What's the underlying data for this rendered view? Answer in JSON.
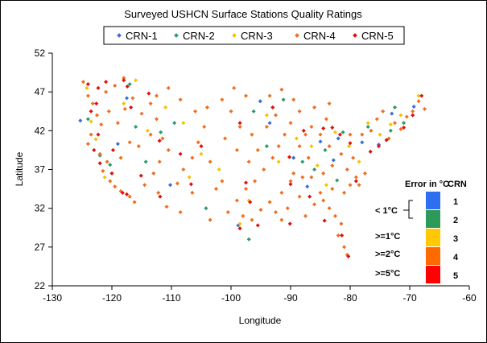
{
  "chart_data": {
    "type": "scatter",
    "title": "Surveyed USHCN Surface Stations Quality Ratings",
    "xlabel": "Longitude",
    "ylabel": "Latitude",
    "xlim": [
      -130,
      -60
    ],
    "ylim": [
      22,
      52
    ],
    "x_ticks": [
      "-130",
      "-120",
      "-110",
      "-100",
      "-90",
      "-80",
      "-70",
      "-60"
    ],
    "y_ticks": [
      "22",
      "27",
      "32",
      "37",
      "42",
      "47",
      "52"
    ],
    "grid": false,
    "legend_position": "top",
    "series": [
      {
        "name": "CRN-1",
        "color": "#3a6fd8",
        "points": [
          [
            -125.3,
            43.3
          ],
          [
            -119.0,
            40.3
          ],
          [
            -117.5,
            46.2
          ],
          [
            -110.2,
            35.0
          ],
          [
            -98.8,
            29.8
          ],
          [
            -95.1,
            45.8
          ],
          [
            -93.5,
            43.0
          ],
          [
            -89.5,
            38.5
          ],
          [
            -87.2,
            34.8
          ],
          [
            -85.0,
            40.6
          ],
          [
            -82.8,
            38.2
          ],
          [
            -82.0,
            41.0
          ],
          [
            -78.0,
            40.5
          ],
          [
            -73.0,
            44.2
          ],
          [
            -75.2,
            40.2
          ],
          [
            -69.3,
            45.1
          ]
        ]
      },
      {
        "name": "CRN-2",
        "color": "#2e9a6a",
        "points": [
          [
            -124.0,
            43.5
          ],
          [
            -122.0,
            38.8
          ],
          [
            -120.3,
            37.6
          ],
          [
            -117.0,
            48.0
          ],
          [
            -116.0,
            42.5
          ],
          [
            -114.3,
            38.0
          ],
          [
            -111.8,
            41.8
          ],
          [
            -109.5,
            43.0
          ],
          [
            -104.2,
            32.0
          ],
          [
            -97.0,
            28.0
          ],
          [
            -96.2,
            44.5
          ],
          [
            -94.0,
            40.0
          ],
          [
            -91.2,
            46.0
          ],
          [
            -88.0,
            38.0
          ],
          [
            -86.0,
            37.0
          ],
          [
            -84.2,
            39.5
          ],
          [
            -82.2,
            35.6
          ],
          [
            -81.2,
            41.8
          ],
          [
            -77.0,
            42.5
          ],
          [
            -73.2,
            42.0
          ],
          [
            -72.5,
            45.0
          ],
          [
            -71.0,
            43.0
          ]
        ]
      },
      {
        "name": "CRN-3",
        "color": "#f5c400",
        "points": [
          [
            -124.2,
            47.5
          ],
          [
            -123.5,
            43.2
          ],
          [
            -122.7,
            40.9
          ],
          [
            -121.2,
            36.0
          ],
          [
            -118.0,
            45.5
          ],
          [
            -116.0,
            48.5
          ],
          [
            -114.0,
            42.0
          ],
          [
            -111.0,
            45.0
          ],
          [
            -108.0,
            43.0
          ],
          [
            -107.0,
            36.0
          ],
          [
            -105.0,
            39.0
          ],
          [
            -102.0,
            37.0
          ],
          [
            -98.5,
            30.0
          ],
          [
            -97.0,
            33.0
          ],
          [
            -94.0,
            44.0
          ],
          [
            -92.0,
            38.0
          ],
          [
            -89.0,
            41.0
          ],
          [
            -86.5,
            40.0
          ],
          [
            -85.5,
            37.5
          ],
          [
            -84.0,
            35.0
          ],
          [
            -82.5,
            41.8
          ],
          [
            -80.2,
            40.0
          ],
          [
            -78.5,
            38.0
          ],
          [
            -77.0,
            43.0
          ],
          [
            -75.0,
            41.5
          ],
          [
            -73.2,
            42.8
          ],
          [
            -71.5,
            44.0
          ],
          [
            -68.5,
            46.5
          ]
        ]
      },
      {
        "name": "CRN-4",
        "color": "#f07020",
        "points": [
          [
            -124.8,
            48.3
          ],
          [
            -124.0,
            46.5
          ],
          [
            -123.2,
            45.5
          ],
          [
            -122.5,
            44.0
          ],
          [
            -121.8,
            42.8
          ],
          [
            -123.5,
            41.5
          ],
          [
            -124.0,
            40.3
          ],
          [
            -122.0,
            39.0
          ],
          [
            -120.8,
            38.0
          ],
          [
            -121.5,
            36.8
          ],
          [
            -120.3,
            35.5
          ],
          [
            -119.5,
            34.8
          ],
          [
            -118.5,
            34.2
          ],
          [
            -117.0,
            33.5
          ],
          [
            -116.2,
            32.8
          ],
          [
            -121.0,
            47.0
          ],
          [
            -119.5,
            47.8
          ],
          [
            -118.0,
            48.8
          ],
          [
            -120.5,
            44.5
          ],
          [
            -119.0,
            43.0
          ],
          [
            -117.8,
            44.8
          ],
          [
            -116.5,
            46.2
          ],
          [
            -115.0,
            44.2
          ],
          [
            -113.5,
            45.5
          ],
          [
            -112.5,
            43.5
          ],
          [
            -111.5,
            41.0
          ],
          [
            -110.5,
            39.5
          ],
          [
            -112.0,
            38.0
          ],
          [
            -113.0,
            36.5
          ],
          [
            -114.5,
            35.0
          ],
          [
            -112.2,
            34.0
          ],
          [
            -110.8,
            32.2
          ],
          [
            -109.0,
            35.2
          ],
          [
            -108.0,
            37.0
          ],
          [
            -106.5,
            38.5
          ],
          [
            -105.5,
            40.5
          ],
          [
            -104.5,
            42.5
          ],
          [
            -106.0,
            44.5
          ],
          [
            -108.5,
            46.0
          ],
          [
            -110.5,
            47.5
          ],
          [
            -112.5,
            46.5
          ],
          [
            -104.0,
            45.0
          ],
          [
            -101.5,
            46.0
          ],
          [
            -99.5,
            47.5
          ],
          [
            -97.5,
            46.5
          ],
          [
            -100.0,
            44.5
          ],
          [
            -98.5,
            42.5
          ],
          [
            -101.0,
            41.0
          ],
          [
            -99.0,
            39.5
          ],
          [
            -97.0,
            38.0
          ],
          [
            -95.5,
            39.5
          ],
          [
            -96.5,
            41.5
          ],
          [
            -94.0,
            42.5
          ],
          [
            -92.5,
            44.0
          ],
          [
            -93.5,
            46.5
          ],
          [
            -91.5,
            47.3
          ],
          [
            -89.5,
            46.0
          ],
          [
            -88.5,
            44.5
          ],
          [
            -90.0,
            43.0
          ],
          [
            -91.0,
            41.5
          ],
          [
            -92.0,
            40.0
          ],
          [
            -93.0,
            38.5
          ],
          [
            -94.5,
            37.0
          ],
          [
            -96.0,
            35.5
          ],
          [
            -97.5,
            34.5
          ],
          [
            -99.0,
            33.0
          ],
          [
            -100.5,
            31.5
          ],
          [
            -98.0,
            31.0
          ],
          [
            -96.5,
            30.5
          ],
          [
            -95.0,
            31.8
          ],
          [
            -93.5,
            32.8
          ],
          [
            -92.5,
            31.5
          ],
          [
            -91.5,
            30.5
          ],
          [
            -90.5,
            32.0
          ],
          [
            -91.5,
            34.0
          ],
          [
            -90.0,
            35.5
          ],
          [
            -88.5,
            33.5
          ],
          [
            -87.5,
            31.0
          ],
          [
            -86.0,
            32.5
          ],
          [
            -85.0,
            34.0
          ],
          [
            -84.5,
            33.0
          ],
          [
            -83.5,
            32.0
          ],
          [
            -82.5,
            31.0
          ],
          [
            -81.5,
            30.0
          ],
          [
            -82.0,
            28.5
          ],
          [
            -81.0,
            27.0
          ],
          [
            -80.5,
            26.0
          ],
          [
            -83.0,
            34.5
          ],
          [
            -81.0,
            34.0
          ],
          [
            -80.0,
            35.0
          ],
          [
            -79.0,
            36.0
          ],
          [
            -78.5,
            35.0
          ],
          [
            -77.5,
            36.5
          ],
          [
            -80.5,
            37.0
          ],
          [
            -79.5,
            38.5
          ],
          [
            -81.5,
            39.0
          ],
          [
            -83.5,
            40.0
          ],
          [
            -85.0,
            41.5
          ],
          [
            -86.5,
            42.5
          ],
          [
            -84.0,
            43.5
          ],
          [
            -83.5,
            45.5
          ],
          [
            -86.0,
            45.0
          ],
          [
            -87.5,
            41.5
          ],
          [
            -88.5,
            40.0
          ],
          [
            -87.0,
            38.5
          ],
          [
            -89.5,
            36.5
          ],
          [
            -88.0,
            36.0
          ],
          [
            -86.5,
            36.0
          ],
          [
            -84.5,
            36.5
          ],
          [
            -83.0,
            37.5
          ],
          [
            -80.0,
            41.5
          ],
          [
            -78.0,
            41.5
          ],
          [
            -76.5,
            42.0
          ],
          [
            -75.5,
            43.5
          ],
          [
            -74.5,
            44.5
          ],
          [
            -73.5,
            41.0
          ],
          [
            -72.5,
            43.0
          ],
          [
            -71.5,
            42.2
          ],
          [
            -70.5,
            43.8
          ],
          [
            -69.5,
            44.5
          ],
          [
            -68.5,
            45.8
          ],
          [
            -67.5,
            44.8
          ],
          [
            -108.5,
            31.5
          ],
          [
            -103.5,
            30.5
          ],
          [
            -106.5,
            34.0
          ],
          [
            -102.5,
            34.5
          ],
          [
            -118.5,
            38.5
          ],
          [
            -117.0,
            40.5
          ],
          [
            -115.5,
            40.0
          ],
          [
            -113.5,
            41.5
          ],
          [
            -103.5,
            38.0
          ],
          [
            -101.5,
            35.5
          ]
        ]
      },
      {
        "name": "CRN-5",
        "color": "#e01010",
        "points": [
          [
            -124.0,
            48.0
          ],
          [
            -122.3,
            47.5
          ],
          [
            -121.0,
            48.3
          ],
          [
            -118.0,
            48.5
          ],
          [
            -123.5,
            44.5
          ],
          [
            -122.3,
            41.5
          ],
          [
            -123.0,
            39.5
          ],
          [
            -122.0,
            37.8
          ],
          [
            -120.0,
            36.5
          ],
          [
            -118.2,
            34.0
          ],
          [
            -117.5,
            33.8
          ],
          [
            -116.8,
            45.0
          ],
          [
            -113.8,
            46.8
          ],
          [
            -112.0,
            40.7
          ],
          [
            -108.5,
            39.0
          ],
          [
            -105.0,
            40.0
          ],
          [
            -97.5,
            35.3
          ],
          [
            -95.5,
            29.8
          ],
          [
            -93.0,
            45.0
          ],
          [
            -90.2,
            38.6
          ],
          [
            -87.8,
            42.0
          ],
          [
            -84.5,
            42.3
          ],
          [
            -83.0,
            42.4
          ],
          [
            -81.7,
            41.5
          ],
          [
            -80.0,
            40.4
          ],
          [
            -79.0,
            35.5
          ],
          [
            -76.6,
            39.3
          ],
          [
            -75.2,
            40.0
          ],
          [
            -73.9,
            40.8
          ],
          [
            -71.0,
            42.4
          ],
          [
            -69.5,
            44.0
          ],
          [
            -68.0,
            46.5
          ],
          [
            -80.3,
            25.8
          ],
          [
            -81.4,
            28.5
          ],
          [
            -84.3,
            30.4
          ],
          [
            -86.8,
            33.5
          ],
          [
            -90.0,
            35.1
          ],
          [
            -90.1,
            30.0
          ],
          [
            -96.8,
            32.8
          ],
          [
            -98.5,
            29.4
          ],
          [
            -106.7,
            35.1
          ],
          [
            -111.9,
            33.5
          ],
          [
            -115.1,
            36.2
          ],
          [
            -119.8,
            39.5
          ],
          [
            -122.6,
            45.5
          ],
          [
            -117.4,
            47.7
          ],
          [
            -98.5,
            43.0
          ]
        ]
      }
    ]
  },
  "error_key": {
    "header_error": "Error in °C",
    "header_crn": "CRN",
    "rows": [
      {
        "range": "< 1°C",
        "crn": "1",
        "color": "#2e6ff0"
      },
      {
        "range": "",
        "crn": "2",
        "color": "#2e9a5a"
      },
      {
        "range": ">=1°C",
        "crn": "3",
        "color": "#ffc800"
      },
      {
        "range": ">=2°C",
        "crn": "4",
        "color": "#ff6a00"
      },
      {
        "range": ">=5°C",
        "crn": "5",
        "color": "#ff0000"
      }
    ]
  }
}
